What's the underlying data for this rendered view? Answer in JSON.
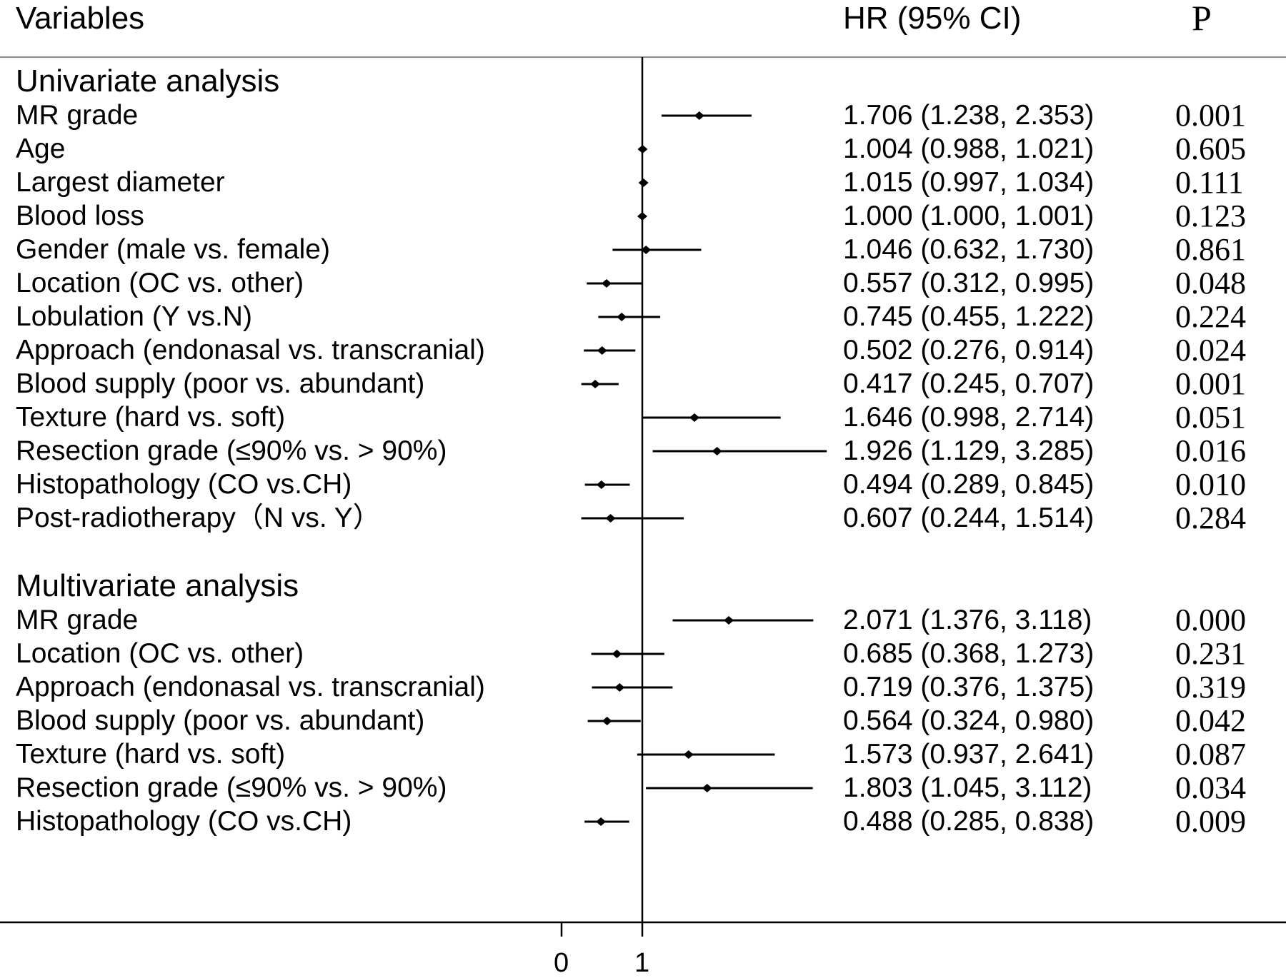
{
  "header": {
    "variables": "Variables",
    "hr": "HR (95% CI)",
    "p": "P"
  },
  "chart_data": {
    "type": "forest",
    "reference_line": 1,
    "x_ticks": [
      "0",
      "1"
    ],
    "groups": [
      {
        "title": "Univariate analysis",
        "rows": [
          {
            "label": "MR grade",
            "hr": 1.706,
            "lo": 1.238,
            "hi": 2.353,
            "hr_text": "1.706 (1.238, 2.353)",
            "p": "0.001"
          },
          {
            "label": "Age",
            "hr": 1.004,
            "lo": 0.988,
            "hi": 1.021,
            "hr_text": "1.004 (0.988, 1.021)",
            "p": "0.605"
          },
          {
            "label": "Largest diameter",
            "hr": 1.015,
            "lo": 0.997,
            "hi": 1.034,
            "hr_text": "1.015 (0.997, 1.034)",
            "p": "0.111"
          },
          {
            "label": "Blood loss",
            "hr": 1.0,
            "lo": 1.0,
            "hi": 1.001,
            "hr_text": "1.000 (1.000, 1.001)",
            "p": "0.123"
          },
          {
            "label": "Gender (male vs. female)",
            "hr": 1.046,
            "lo": 0.632,
            "hi": 1.73,
            "hr_text": "1.046 (0.632, 1.730)",
            "p": "0.861"
          },
          {
            "label": "Location (OC vs. other)",
            "hr": 0.557,
            "lo": 0.312,
            "hi": 0.995,
            "hr_text": "0.557 (0.312, 0.995)",
            "p": "0.048"
          },
          {
            "label": "Lobulation (Y vs.N)",
            "hr": 0.745,
            "lo": 0.455,
            "hi": 1.222,
            "hr_text": "0.745 (0.455, 1.222)",
            "p": "0.224"
          },
          {
            "label": "Approach (endonasal vs. transcranial)",
            "hr": 0.502,
            "lo": 0.276,
            "hi": 0.914,
            "hr_text": "0.502 (0.276, 0.914)",
            "p": "0.024"
          },
          {
            "label": "Blood supply (poor vs. abundant)",
            "hr": 0.417,
            "lo": 0.245,
            "hi": 0.707,
            "hr_text": "0.417 (0.245, 0.707)",
            "p": "0.001"
          },
          {
            "label": "Texture (hard vs. soft)",
            "hr": 1.646,
            "lo": 0.998,
            "hi": 2.714,
            "hr_text": "1.646 (0.998, 2.714)",
            "p": "0.051"
          },
          {
            "label": "Resection grade (≤90% vs. > 90%)",
            "hr": 1.926,
            "lo": 1.129,
            "hi": 3.285,
            "hr_text": "1.926 (1.129, 3.285)",
            "p": "0.016"
          },
          {
            "label": "Histopathology (CO vs.CH)",
            "hr": 0.494,
            "lo": 0.289,
            "hi": 0.845,
            "hr_text": "0.494 (0.289, 0.845)",
            "p": "0.010"
          },
          {
            "label": "Post-radiotherapy（N vs. Y）",
            "hr": 0.607,
            "lo": 0.244,
            "hi": 1.514,
            "hr_text": "0.607 (0.244, 1.514)",
            "p": "0.284"
          }
        ]
      },
      {
        "title": "Multivariate analysis",
        "rows": [
          {
            "label": "MR grade",
            "hr": 2.071,
            "lo": 1.376,
            "hi": 3.118,
            "hr_text": "2.071 (1.376, 3.118)",
            "p": "0.000"
          },
          {
            "label": "Location (OC vs. other)",
            "hr": 0.685,
            "lo": 0.368,
            "hi": 1.273,
            "hr_text": "0.685 (0.368, 1.273)",
            "p": "0.231"
          },
          {
            "label": "Approach (endonasal vs. transcranial)",
            "hr": 0.719,
            "lo": 0.376,
            "hi": 1.375,
            "hr_text": "0.719 (0.376, 1.375)",
            "p": "0.319"
          },
          {
            "label": "Blood supply (poor vs. abundant)",
            "hr": 0.564,
            "lo": 0.324,
            "hi": 0.98,
            "hr_text": "0.564 (0.324, 0.980)",
            "p": "0.042"
          },
          {
            "label": "Texture (hard vs. soft)",
            "hr": 1.573,
            "lo": 0.937,
            "hi": 2.641,
            "hr_text": "1.573 (0.937, 2.641)",
            "p": "0.087"
          },
          {
            "label": "Resection grade (≤90% vs. > 90%)",
            "hr": 1.803,
            "lo": 1.045,
            "hi": 3.112,
            "hr_text": "1.803 (1.045, 3.112)",
            "p": "0.034"
          },
          {
            "label": "Histopathology (CO vs.CH)",
            "hr": 0.488,
            "lo": 0.285,
            "hi": 0.838,
            "hr_text": "0.488 (0.285, 0.838)",
            "p": "0.009"
          }
        ]
      }
    ]
  }
}
